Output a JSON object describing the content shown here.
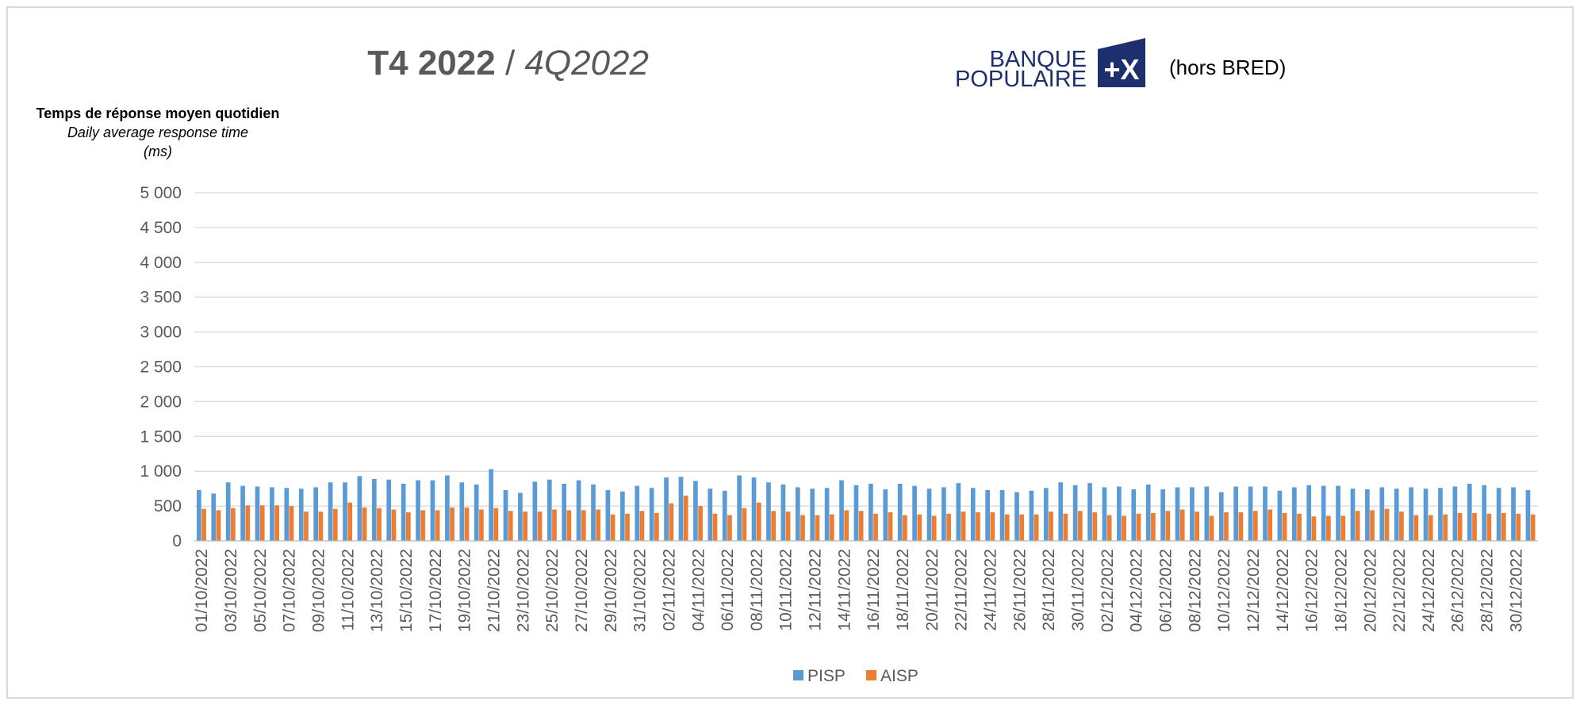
{
  "chart_data": {
    "type": "bar",
    "title": "T4 2022",
    "title_separator": "/",
    "subtitle": "4Q2022",
    "logo_text": [
      "BANQUE",
      "POPULAIRE"
    ],
    "note": "(hors BRED)",
    "y_label": [
      "Temps de réponse moyen quotidien",
      "Daily average response time",
      "(ms)"
    ],
    "categories": [
      "01/10/2022",
      null,
      "03/10/2022",
      null,
      "05/10/2022",
      null,
      "07/10/2022",
      null,
      "09/10/2022",
      null,
      "11/10/2022",
      null,
      "13/10/2022",
      null,
      "15/10/2022",
      null,
      "17/10/2022",
      null,
      "19/10/2022",
      null,
      "21/10/2022",
      null,
      "23/10/2022",
      null,
      "25/10/2022",
      null,
      "27/10/2022",
      null,
      "29/10/2022",
      null,
      "31/10/2022",
      null,
      "02/11/2022",
      null,
      "04/11/2022",
      null,
      "06/11/2022",
      null,
      "08/11/2022",
      null,
      "10/11/2022",
      null,
      "12/11/2022",
      null,
      "14/11/2022",
      null,
      "16/11/2022",
      null,
      "18/11/2022",
      null,
      "20/11/2022",
      null,
      "22/11/2022",
      null,
      "24/11/2022",
      null,
      "26/11/2022",
      null,
      "28/11/2022",
      null,
      "30/11/2022",
      null,
      "02/12/2022",
      null,
      "04/12/2022",
      null,
      "06/12/2022",
      null,
      "08/12/2022",
      null,
      "10/12/2022",
      null,
      "12/12/2022",
      null,
      "14/12/2022",
      null,
      "16/12/2022",
      null,
      "18/12/2022",
      null,
      "20/12/2022",
      null,
      "22/12/2022",
      null,
      "24/12/2022",
      null,
      "26/12/2022",
      null,
      "28/12/2022",
      null,
      "30/12/2022",
      null
    ],
    "series": [
      {
        "name": "PISP",
        "color": "#5b9bd5",
        "values": [
          730,
          680,
          840,
          790,
          780,
          770,
          760,
          750,
          770,
          840,
          840,
          930,
          890,
          880,
          820,
          870,
          870,
          940,
          840,
          810,
          1030,
          730,
          690,
          850,
          880,
          820,
          870,
          810,
          730,
          710,
          790,
          760,
          910,
          920,
          860,
          750,
          720,
          940,
          910,
          840,
          810,
          770,
          750,
          760,
          870,
          800,
          820,
          740,
          820,
          790,
          750,
          770,
          830,
          760,
          730,
          730,
          700,
          720,
          760,
          840,
          800,
          830,
          770,
          780,
          740,
          810,
          740,
          770,
          770,
          780,
          700,
          780,
          780,
          780,
          720,
          770,
          800,
          790,
          790,
          750,
          740,
          770,
          750,
          770,
          750,
          760,
          780,
          820,
          800,
          760,
          770,
          730
        ]
      },
      {
        "name": "AISP",
        "color": "#ed7d31",
        "values": [
          460,
          440,
          470,
          510,
          510,
          510,
          500,
          420,
          420,
          460,
          550,
          480,
          470,
          450,
          410,
          440,
          440,
          480,
          480,
          450,
          470,
          430,
          420,
          420,
          450,
          440,
          440,
          450,
          380,
          390,
          430,
          400,
          540,
          650,
          500,
          390,
          370,
          470,
          550,
          430,
          420,
          370,
          370,
          380,
          440,
          430,
          390,
          410,
          370,
          380,
          360,
          390,
          420,
          410,
          410,
          380,
          380,
          380,
          420,
          390,
          430,
          410,
          370,
          360,
          390,
          400,
          430,
          450,
          420,
          360,
          410,
          410,
          430,
          450,
          400,
          390,
          350,
          360,
          360,
          430,
          440,
          460,
          420,
          370,
          370,
          380,
          400,
          400,
          390,
          400,
          390,
          380
        ]
      }
    ],
    "ylim": [
      0,
      5000
    ],
    "yticks": [
      0,
      500,
      {
        "value": 1000,
        "label": "1 000"
      },
      {
        "value": 1500,
        "label": "1 500"
      },
      {
        "value": 2000,
        "label": "2 000"
      },
      {
        "value": 2500,
        "label": "2 500"
      },
      {
        "value": 3000,
        "label": "3 000"
      },
      {
        "value": 3500,
        "label": "3 500"
      },
      {
        "value": 4000,
        "label": "4 000"
      },
      {
        "value": 4500,
        "label": "4 500"
      },
      {
        "value": 5000,
        "label": "5 000"
      }
    ],
    "grid": true,
    "legend": "bottom"
  }
}
